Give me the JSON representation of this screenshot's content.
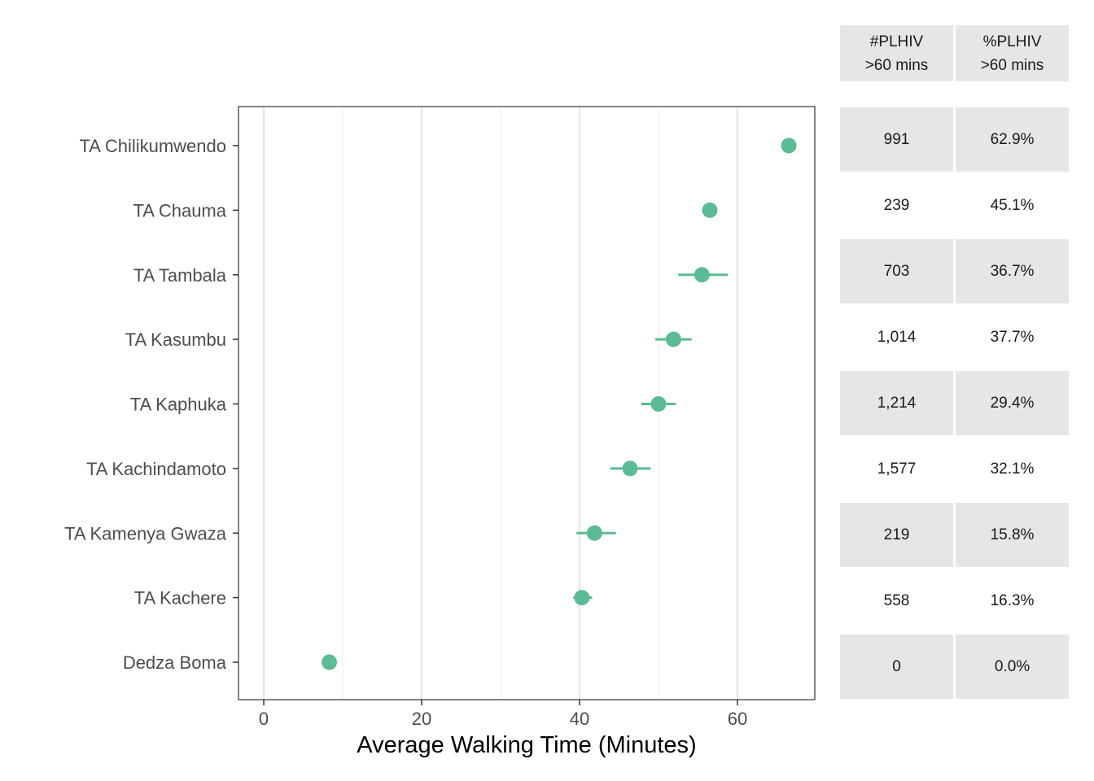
{
  "chart_data": {
    "type": "scatter",
    "xlabel": "Average Walking Time (Minutes)",
    "xlim": [
      -3.2,
      69.8
    ],
    "xticks": [
      0,
      20,
      40,
      60
    ],
    "x_minor_grid": [
      10,
      30,
      50
    ],
    "grid": true,
    "categories": [
      "TA Chilikumwendo",
      "TA Chauma",
      "TA Tambala",
      "TA Kasumbu",
      "TA Kaphuka",
      "TA Kachindamoto",
      "TA Kamenya Gwaza",
      "TA Kachere",
      "Dedza Boma"
    ],
    "points": [
      {
        "category": "TA Chilikumwendo",
        "x": 66.5,
        "lo": 66.5,
        "hi": 66.5
      },
      {
        "category": "TA Chauma",
        "x": 56.5,
        "lo": 56.5,
        "hi": 56.5
      },
      {
        "category": "TA Tambala",
        "x": 55.5,
        "lo": 52.5,
        "hi": 58.8
      },
      {
        "category": "TA Kasumbu",
        "x": 51.9,
        "lo": 49.6,
        "hi": 54.2
      },
      {
        "category": "TA Kaphuka",
        "x": 50.0,
        "lo": 47.8,
        "hi": 52.2
      },
      {
        "category": "TA Kachindamoto",
        "x": 46.4,
        "lo": 43.9,
        "hi": 49.0
      },
      {
        "category": "TA Kamenya Gwaza",
        "x": 41.9,
        "lo": 39.6,
        "hi": 44.6
      },
      {
        "category": "TA Kachere",
        "x": 40.3,
        "lo": 39.2,
        "hi": 41.6
      },
      {
        "category": "Dedza Boma",
        "x": 8.3,
        "lo": 8.3,
        "hi": 8.3
      }
    ],
    "colors": {
      "point": "#5bbb94",
      "panel_border": "#333333",
      "major_grid": "#e6e6e6",
      "minor_grid": "#f0f0f0",
      "table_fill": "#e6e6e6",
      "axis_text": "#4d4d4d"
    },
    "table": {
      "columns": [
        {
          "line1": "#PLHIV",
          "line2": ">60 mins"
        },
        {
          "line1": "%PLHIV",
          "line2": ">60 mins"
        }
      ],
      "rows": [
        {
          "count": "991",
          "percent": "62.9%"
        },
        {
          "count": "239",
          "percent": "45.1%"
        },
        {
          "count": "703",
          "percent": "36.7%"
        },
        {
          "count": "1,014",
          "percent": "37.7%"
        },
        {
          "count": "1,214",
          "percent": "29.4%"
        },
        {
          "count": "1,577",
          "percent": "32.1%"
        },
        {
          "count": "219",
          "percent": "15.8%"
        },
        {
          "count": "558",
          "percent": "16.3%"
        },
        {
          "count": "0",
          "percent": "0.0%"
        }
      ]
    }
  }
}
